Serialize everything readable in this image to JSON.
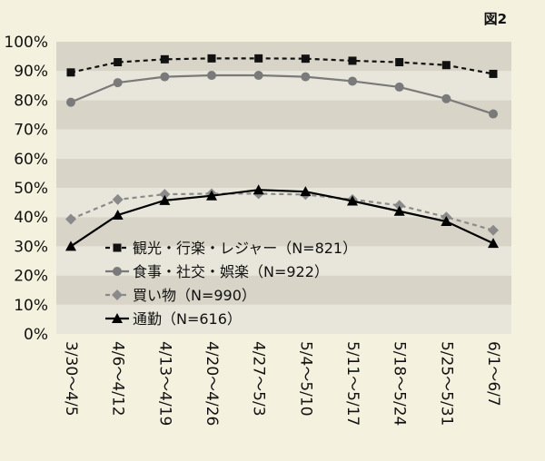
{
  "figure_label": "図2",
  "chart_data": {
    "type": "line",
    "categories": [
      "3/30～4/5",
      "4/6～4/12",
      "4/13～4/19",
      "4/20～4/26",
      "4/27～5/3",
      "5/4～5/10",
      "5/11～5/17",
      "5/18～5/24",
      "5/25～5/31",
      "6/1～6/7"
    ],
    "y_ticks": [
      "0%",
      "10%",
      "20%",
      "30%",
      "40%",
      "50%",
      "60%",
      "70%",
      "80%",
      "90%",
      "100%"
    ],
    "ylim": [
      0,
      100
    ],
    "y_unit": "%",
    "grid": "alternating horizontal bands",
    "legend_position": "inside lower-left",
    "series": [
      {
        "name": "観光・行楽・レジャー（N=821）",
        "marker": "square",
        "line": "dashed",
        "color": "#111111",
        "values": [
          89.5,
          93,
          94,
          94.3,
          94.3,
          94.2,
          93.5,
          93,
          92,
          89
        ]
      },
      {
        "name": "食事・社交・娯楽（N=922）",
        "marker": "circle",
        "line": "solid",
        "color": "#7a7a7a",
        "values": [
          79.3,
          86,
          88,
          88.5,
          88.5,
          88,
          86.5,
          84.5,
          80.5,
          75.3
        ]
      },
      {
        "name": "買い物（N=990）",
        "marker": "diamond",
        "line": "dashed",
        "color": "#8a8a8a",
        "values": [
          39.3,
          46,
          47.8,
          48,
          48,
          47.7,
          46,
          44,
          40,
          35.5
        ]
      },
      {
        "name": "通勤（N=616）",
        "marker": "triangle",
        "line": "solid",
        "color": "#000000",
        "values": [
          30,
          40.7,
          45.7,
          47.3,
          49.3,
          48.7,
          45.5,
          42,
          38.5,
          31
        ]
      }
    ]
  }
}
